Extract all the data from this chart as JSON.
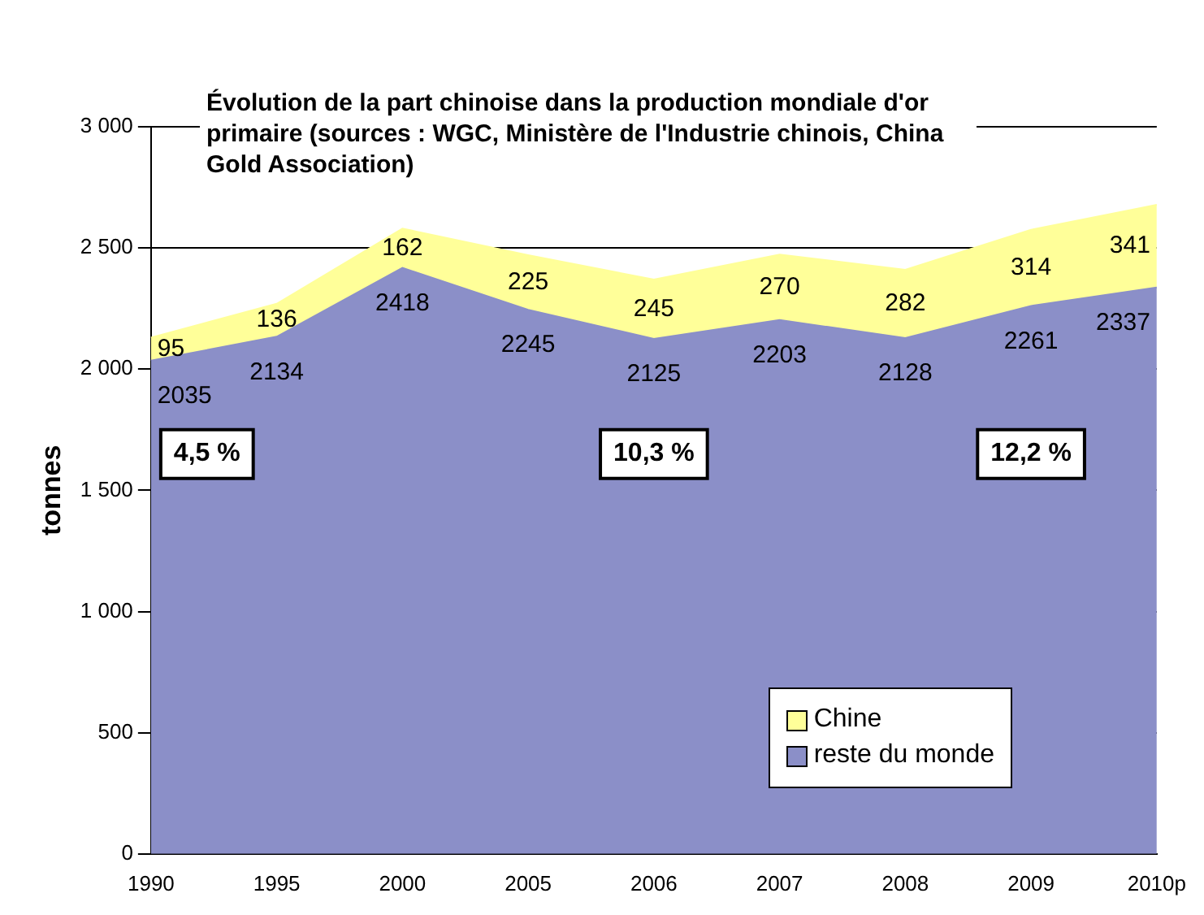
{
  "chart_data": {
    "type": "area",
    "stacked": true,
    "title": "Évolution de la part chinoise dans la production mondiale d'or primaire (sources : WGC, Ministère de l'Industrie chinois, China Gold Association)",
    "ylabel": "tonnes",
    "categories": [
      "1990",
      "1995",
      "2000",
      "2005",
      "2006",
      "2007",
      "2008",
      "2009",
      "2010p"
    ],
    "series": [
      {
        "name": "reste du monde",
        "color": "#8b8fc8",
        "values": [
          2035,
          2134,
          2418,
          2245,
          2125,
          2203,
          2128,
          2261,
          2337
        ]
      },
      {
        "name": "Chine",
        "color": "#ffff99",
        "values": [
          95,
          136,
          162,
          225,
          245,
          270,
          282,
          314,
          341
        ]
      }
    ],
    "ylim": [
      0,
      3000
    ],
    "yticks": [
      {
        "value": 0,
        "label": "0"
      },
      {
        "value": 500,
        "label": "500"
      },
      {
        "value": 1000,
        "label": "1 000"
      },
      {
        "value": 1500,
        "label": "1 500"
      },
      {
        "value": 2000,
        "label": "2 000"
      },
      {
        "value": 2500,
        "label": "2 500"
      },
      {
        "value": 3000,
        "label": "3 000"
      }
    ],
    "grid": "y",
    "legend": "bottom right",
    "data_labels": true,
    "annotations": [
      "4,5 %",
      "10,3 %",
      "12,2 %"
    ]
  }
}
